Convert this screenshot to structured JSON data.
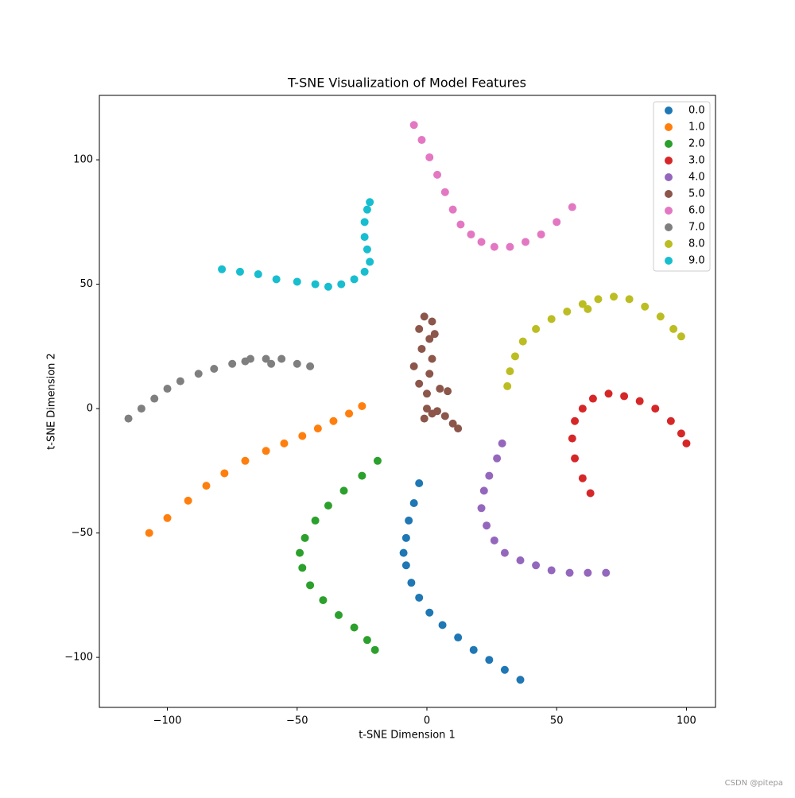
{
  "chart_data": {
    "type": "scatter",
    "title": "T-SNE Visualization of Model Features",
    "x_label": "t-SNE Dimension 1",
    "y_label": "t-SNE Dimension 2",
    "xlim": [
      -126.2,
      111.2
    ],
    "ylim": [
      -120.1,
      125.9
    ],
    "xticks": [
      {
        "value": -100,
        "label": "−100"
      },
      {
        "value": -50,
        "label": "−50"
      },
      0,
      50,
      100
    ],
    "yticks": [
      {
        "value": -100,
        "label": "−100"
      },
      {
        "value": -50,
        "label": "−50"
      },
      0,
      50,
      100
    ],
    "legend": "upper right",
    "series": [
      {
        "name": "0.0",
        "color": "#1f77b4",
        "x": [
          -3,
          -5,
          -7,
          -8,
          -9,
          -8,
          -6,
          -3,
          1,
          6,
          12,
          18,
          24,
          30,
          36
        ],
        "y": [
          -30,
          -38,
          -45,
          -52,
          -58,
          -63,
          -70,
          -76,
          -82,
          -87,
          -92,
          -97,
          -101,
          -105,
          -109
        ]
      },
      {
        "name": "1.0",
        "color": "#ff7f0e",
        "x": [
          -107,
          -100,
          -92,
          -85,
          -78,
          -70,
          -62,
          -55,
          -48,
          -42,
          -36,
          -30,
          -25
        ],
        "y": [
          -50,
          -44,
          -37,
          -31,
          -26,
          -21,
          -17,
          -14,
          -11,
          -8,
          -5,
          -2,
          1
        ]
      },
      {
        "name": "2.0",
        "color": "#2ca02c",
        "x": [
          -19,
          -25,
          -32,
          -38,
          -43,
          -47,
          -49,
          -48,
          -45,
          -40,
          -34,
          -28,
          -23,
          -20
        ],
        "y": [
          -21,
          -27,
          -33,
          -39,
          -45,
          -52,
          -58,
          -64,
          -71,
          -77,
          -83,
          -88,
          -93,
          -97
        ]
      },
      {
        "name": "3.0",
        "color": "#d62728",
        "x": [
          63,
          60,
          57,
          56,
          57,
          60,
          64,
          70,
          76,
          82,
          88,
          94,
          98,
          100
        ],
        "y": [
          -34,
          -28,
          -20,
          -12,
          -5,
          0,
          4,
          6,
          5,
          3,
          0,
          -5,
          -10,
          -14
        ]
      },
      {
        "name": "4.0",
        "color": "#9467bd",
        "x": [
          29,
          27,
          24,
          22,
          21,
          23,
          26,
          30,
          36,
          42,
          48,
          55,
          62,
          69
        ],
        "y": [
          -14,
          -20,
          -27,
          -33,
          -40,
          -47,
          -53,
          -58,
          -61,
          -63,
          -65,
          -66,
          -66,
          -66
        ]
      },
      {
        "name": "5.0",
        "color": "#8c564b",
        "x": [
          -1,
          2,
          -3,
          1,
          -2,
          2,
          -5,
          1,
          -3,
          0,
          5,
          8,
          0,
          4,
          7,
          10,
          12,
          2,
          -1,
          3
        ],
        "y": [
          37,
          35,
          32,
          28,
          24,
          20,
          17,
          14,
          10,
          6,
          8,
          7,
          0,
          -1,
          -3,
          -6,
          -8,
          -2,
          -4,
          30
        ]
      },
      {
        "name": "6.0",
        "color": "#e377c2",
        "x": [
          -5,
          -2,
          1,
          4,
          7,
          10,
          13,
          17,
          21,
          26,
          32,
          38,
          44,
          50,
          56
        ],
        "y": [
          114,
          108,
          101,
          94,
          87,
          80,
          74,
          70,
          67,
          65,
          65,
          67,
          70,
          75,
          81
        ]
      },
      {
        "name": "7.0",
        "color": "#7f7f7f",
        "x": [
          -115,
          -110,
          -105,
          -100,
          -95,
          -88,
          -82,
          -75,
          -68,
          -62,
          -56,
          -50,
          -45,
          -60,
          -70
        ],
        "y": [
          -4,
          0,
          4,
          8,
          11,
          14,
          16,
          18,
          20,
          20,
          20,
          18,
          17,
          18,
          19
        ]
      },
      {
        "name": "8.0",
        "color": "#bcbd22",
        "x": [
          31,
          32,
          34,
          37,
          42,
          48,
          54,
          60,
          66,
          72,
          78,
          84,
          90,
          95,
          98,
          62
        ],
        "y": [
          9,
          15,
          21,
          27,
          32,
          36,
          39,
          42,
          44,
          45,
          44,
          41,
          37,
          32,
          29,
          40
        ]
      },
      {
        "name": "9.0",
        "color": "#17becf",
        "x": [
          -79,
          -72,
          -65,
          -58,
          -50,
          -43,
          -38,
          -33,
          -28,
          -24,
          -22,
          -23,
          -24,
          -24,
          -23,
          -22
        ],
        "y": [
          56,
          55,
          54,
          52,
          51,
          50,
          49,
          50,
          52,
          55,
          59,
          64,
          69,
          75,
          80,
          83
        ]
      }
    ],
    "watermark": "CSDN @pitepa"
  }
}
